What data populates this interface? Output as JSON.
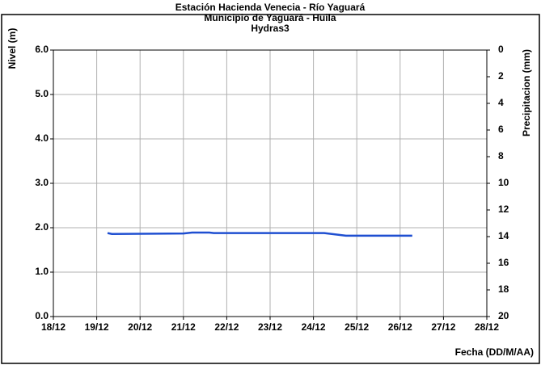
{
  "chart_data": {
    "type": "line",
    "title": [
      "Estación Hacienda Venecia - Río  Yaguará",
      "Municipio de Yaguará - Huila",
      "Hydras3"
    ],
    "ylabel": "Nivel (m)",
    "y2label": "Precipitacion (mm)",
    "xlabel": "Fecha (DD/M/AA)",
    "xlim": [
      18,
      28
    ],
    "xticks": [
      {
        "value": 18,
        "label": "18/12"
      },
      {
        "value": 19,
        "label": "19/12"
      },
      {
        "value": 20,
        "label": "20/12"
      },
      {
        "value": 21,
        "label": "21/12"
      },
      {
        "value": 22,
        "label": "22/12"
      },
      {
        "value": 23,
        "label": "23/12"
      },
      {
        "value": 24,
        "label": "24/12"
      },
      {
        "value": 25,
        "label": "25/12"
      },
      {
        "value": 26,
        "label": "26/12"
      },
      {
        "value": 27,
        "label": "27/12"
      },
      {
        "value": 28,
        "label": "28/12"
      }
    ],
    "ylim": [
      0,
      6
    ],
    "yticks": [
      {
        "value": 0,
        "label": "0.0"
      },
      {
        "value": 1,
        "label": "1.0"
      },
      {
        "value": 2,
        "label": "2.0"
      },
      {
        "value": 3,
        "label": "3.0"
      },
      {
        "value": 4,
        "label": "4.0"
      },
      {
        "value": 5,
        "label": "5.0"
      },
      {
        "value": 6,
        "label": "6.0"
      }
    ],
    "y2lim": [
      20,
      0
    ],
    "y2ticks": [
      0,
      2,
      4,
      6,
      8,
      10,
      12,
      14,
      16,
      18,
      20
    ],
    "grid": true,
    "series": [
      {
        "name": "Nivel",
        "color": "#1f4fd1",
        "x": [
          19.25,
          19.35,
          21.0,
          21.2,
          21.6,
          21.7,
          24.25,
          24.5,
          24.75,
          26.28
        ],
        "values": [
          1.88,
          1.86,
          1.87,
          1.89,
          1.89,
          1.88,
          1.88,
          1.85,
          1.82,
          1.82
        ]
      }
    ]
  }
}
